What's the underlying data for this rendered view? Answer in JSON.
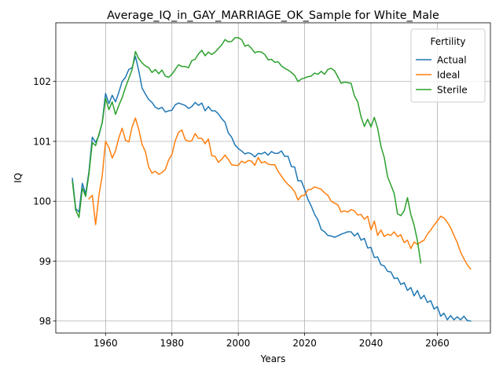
{
  "chart_data": {
    "type": "line",
    "title": "Average_IQ_in_GAY_MARRIAGE_OK_Sample for White_Male",
    "xlabel": "Years",
    "ylabel": "IQ",
    "xlim": [
      1945.0,
      2076.0
    ],
    "ylim": [
      97.8,
      102.98
    ],
    "xticks": [
      1960,
      1980,
      2000,
      2020,
      2040,
      2060
    ],
    "yticks": [
      98,
      99,
      100,
      101,
      102
    ],
    "grid": true,
    "legend": {
      "title": "Fertility",
      "placement": "upper-right"
    },
    "series": [
      {
        "name": "Actual",
        "color": "#1f77b4",
        "x": [
          1950,
          1951,
          1952,
          1953,
          1954,
          1955,
          1956,
          1957,
          1958,
          1959,
          1960,
          1961,
          1962,
          1963,
          1964,
          1965,
          1966,
          1967,
          1968,
          1969,
          1970,
          1971,
          1972,
          1973,
          1974,
          1975,
          1976,
          1977,
          1978,
          1979,
          1980,
          1981,
          1982,
          1983,
          1984,
          1985,
          1986,
          1987,
          1988,
          1989,
          1990,
          1991,
          1992,
          1993,
          1994,
          1995,
          1996,
          1997,
          1998,
          1999,
          2000,
          2001,
          2002,
          2003,
          2004,
          2005,
          2006,
          2007,
          2008,
          2009,
          2010,
          2011,
          2012,
          2013,
          2014,
          2015,
          2016,
          2017,
          2018,
          2019,
          2020,
          2021,
          2022,
          2023,
          2024,
          2025,
          2026,
          2027,
          2028,
          2029,
          2030,
          2031,
          2032,
          2033,
          2034,
          2035,
          2036,
          2037,
          2038,
          2039,
          2040,
          2041,
          2042,
          2043,
          2044,
          2045,
          2046,
          2047,
          2048,
          2049,
          2050,
          2051,
          2052,
          2053,
          2054,
          2055,
          2056,
          2057,
          2058,
          2059,
          2060,
          2061,
          2062,
          2063,
          2064,
          2065,
          2066,
          2067,
          2068,
          2069,
          2070
        ],
        "values": [
          100.38,
          99.88,
          99.82,
          100.3,
          100.12,
          100.5,
          101.07,
          100.98,
          101.1,
          101.32,
          101.8,
          101.63,
          101.77,
          101.66,
          101.82,
          102.0,
          102.07,
          102.2,
          102.23,
          102.42,
          102.18,
          101.89,
          101.79,
          101.7,
          101.65,
          101.57,
          101.54,
          101.57,
          101.49,
          101.51,
          101.52,
          101.61,
          101.64,
          101.62,
          101.6,
          101.55,
          101.58,
          101.65,
          101.6,
          101.64,
          101.51,
          101.58,
          101.51,
          101.51,
          101.46,
          101.38,
          101.32,
          101.14,
          101.07,
          100.94,
          100.88,
          100.84,
          100.79,
          100.81,
          100.79,
          100.74,
          100.8,
          100.79,
          100.82,
          100.77,
          100.83,
          100.8,
          100.8,
          100.84,
          100.75,
          100.75,
          100.58,
          100.57,
          100.34,
          100.34,
          100.2,
          100.03,
          99.92,
          99.78,
          99.69,
          99.53,
          99.49,
          99.43,
          99.42,
          99.4,
          99.42,
          99.45,
          99.47,
          99.49,
          99.49,
          99.42,
          99.47,
          99.35,
          99.38,
          99.22,
          99.23,
          99.06,
          99.07,
          98.94,
          98.92,
          98.83,
          98.82,
          98.71,
          98.72,
          98.61,
          98.64,
          98.51,
          98.56,
          98.42,
          98.51,
          98.37,
          98.43,
          98.31,
          98.34,
          98.2,
          98.24,
          98.08,
          98.13,
          98.02,
          98.09,
          98.02,
          98.07,
          98.02,
          98.08,
          98.01,
          98.0
        ]
      },
      {
        "name": "Ideal",
        "color": "#ff7f0e",
        "x": [
          1955,
          1956,
          1957,
          1958,
          1959,
          1960,
          1961,
          1962,
          1963,
          1964,
          1965,
          1966,
          1967,
          1968,
          1969,
          1970,
          1971,
          1972,
          1973,
          1974,
          1975,
          1976,
          1977,
          1978,
          1979,
          1980,
          1981,
          1982,
          1983,
          1984,
          1985,
          1986,
          1987,
          1988,
          1989,
          1990,
          1991,
          1992,
          1993,
          1994,
          1995,
          1996,
          1997,
          1998,
          1999,
          2000,
          2001,
          2002,
          2003,
          2004,
          2005,
          2006,
          2007,
          2008,
          2009,
          2010,
          2011,
          2012,
          2013,
          2014,
          2015,
          2016,
          2017,
          2018,
          2019,
          2020,
          2021,
          2022,
          2023,
          2024,
          2025,
          2026,
          2027,
          2028,
          2029,
          2030,
          2031,
          2032,
          2033,
          2034,
          2035,
          2036,
          2037,
          2038,
          2039,
          2040,
          2041,
          2042,
          2043,
          2044,
          2045,
          2046,
          2047,
          2048,
          2049,
          2050,
          2051,
          2052,
          2053,
          2054,
          2055,
          2056,
          2057,
          2058,
          2059,
          2060,
          2061,
          2062,
          2063,
          2064,
          2065,
          2066,
          2067,
          2068,
          2069,
          2070
        ],
        "values": [
          100.04,
          100.1,
          99.61,
          100.1,
          100.43,
          101.0,
          100.9,
          100.72,
          100.84,
          101.06,
          101.22,
          101.02,
          100.99,
          101.24,
          101.39,
          101.2,
          100.95,
          100.83,
          100.57,
          100.47,
          100.5,
          100.45,
          100.48,
          100.53,
          100.69,
          100.78,
          101.01,
          101.15,
          101.19,
          101.03,
          101.0,
          101.01,
          101.13,
          101.05,
          101.05,
          100.96,
          101.04,
          100.76,
          100.75,
          100.65,
          100.7,
          100.77,
          100.7,
          100.61,
          100.6,
          100.6,
          100.67,
          100.64,
          100.68,
          100.67,
          100.6,
          100.73,
          100.64,
          100.66,
          100.62,
          100.61,
          100.61,
          100.5,
          100.42,
          100.34,
          100.28,
          100.23,
          100.16,
          100.02,
          100.09,
          100.1,
          100.19,
          100.2,
          100.24,
          100.22,
          100.2,
          100.14,
          100.1,
          100.0,
          99.97,
          99.94,
          99.82,
          99.84,
          99.82,
          99.86,
          99.84,
          99.77,
          99.78,
          99.7,
          99.75,
          99.52,
          99.67,
          99.43,
          99.52,
          99.41,
          99.45,
          99.43,
          99.49,
          99.41,
          99.44,
          99.31,
          99.35,
          99.21,
          99.32,
          99.28,
          99.32,
          99.35,
          99.45,
          99.52,
          99.6,
          99.67,
          99.75,
          99.72,
          99.65,
          99.56,
          99.43,
          99.31,
          99.15,
          99.04,
          98.94,
          98.87
        ]
      },
      {
        "name": "Sterile",
        "color": "#2ca02c",
        "x": [
          1950,
          1951,
          1952,
          1953,
          1954,
          1955,
          1956,
          1957,
          1958,
          1959,
          1960,
          1961,
          1962,
          1963,
          1964,
          1965,
          1966,
          1967,
          1968,
          1969,
          1970,
          1971,
          1972,
          1973,
          1974,
          1975,
          1976,
          1977,
          1978,
          1979,
          1980,
          1981,
          1982,
          1983,
          1984,
          1985,
          1986,
          1987,
          1988,
          1989,
          1990,
          1991,
          1992,
          1993,
          1994,
          1995,
          1996,
          1997,
          1998,
          1999,
          2000,
          2001,
          2002,
          2003,
          2004,
          2005,
          2006,
          2007,
          2008,
          2009,
          2010,
          2011,
          2012,
          2013,
          2014,
          2015,
          2016,
          2017,
          2018,
          2019,
          2020,
          2021,
          2022,
          2023,
          2024,
          2025,
          2026,
          2027,
          2028,
          2029,
          2030,
          2031,
          2032,
          2033,
          2034,
          2035,
          2036,
          2037,
          2038,
          2039,
          2040,
          2041,
          2042,
          2043,
          2044,
          2045,
          2046,
          2047,
          2048,
          2049,
          2050,
          2051,
          2052,
          2053,
          2054,
          2055
        ],
        "values": [
          100.33,
          99.85,
          99.73,
          100.22,
          100.08,
          100.46,
          100.98,
          100.93,
          101.12,
          101.31,
          101.72,
          101.53,
          101.66,
          101.45,
          101.6,
          101.73,
          101.9,
          102.05,
          102.2,
          102.5,
          102.38,
          102.31,
          102.26,
          102.23,
          102.15,
          102.2,
          102.13,
          102.19,
          102.09,
          102.07,
          102.12,
          102.2,
          102.28,
          102.25,
          102.25,
          102.23,
          102.35,
          102.37,
          102.46,
          102.52,
          102.43,
          102.49,
          102.45,
          102.49,
          102.55,
          102.61,
          102.7,
          102.66,
          102.67,
          102.73,
          102.73,
          102.7,
          102.59,
          102.61,
          102.55,
          102.48,
          102.5,
          102.49,
          102.45,
          102.36,
          102.37,
          102.32,
          102.33,
          102.26,
          102.22,
          102.19,
          102.15,
          102.1,
          102.0,
          102.04,
          102.06,
          102.08,
          102.09,
          102.14,
          102.12,
          102.17,
          102.12,
          102.2,
          102.22,
          102.18,
          102.08,
          101.97,
          101.99,
          101.98,
          101.97,
          101.76,
          101.66,
          101.41,
          101.25,
          101.37,
          101.24,
          101.4,
          101.22,
          100.92,
          100.73,
          100.41,
          100.27,
          100.13,
          99.79,
          99.76,
          99.84,
          100.06,
          99.78,
          99.6,
          99.34,
          98.97
        ]
      }
    ]
  }
}
